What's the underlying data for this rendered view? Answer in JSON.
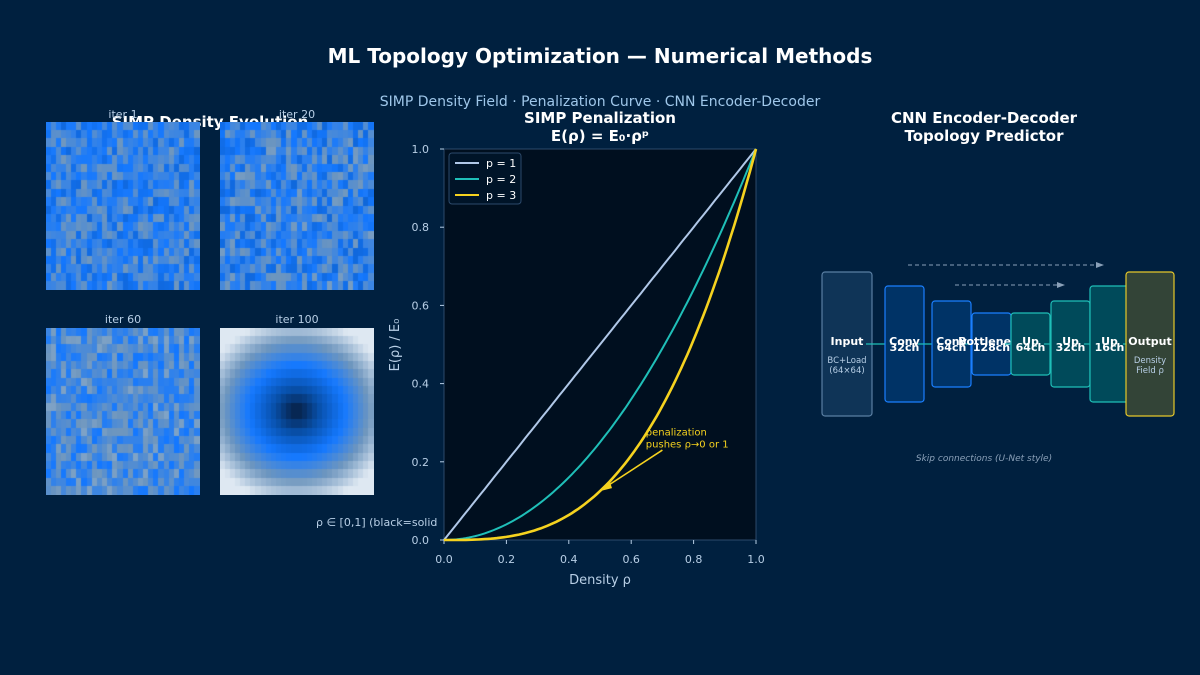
{
  "title": "ML Topology Optimization — Numerical Methods",
  "subtitle": "SIMP Density Field  ·  Penalization Curve  ·  CNN Encoder-Decoder",
  "density_panel": {
    "title": "SIMP Density Evolution",
    "iterations": [
      "iter 1",
      "iter 20",
      "iter 60",
      "iter 100"
    ],
    "caption": "ρ ∈ [0,1]  (black=solid"
  },
  "chart_data": {
    "type": "line",
    "title": "SIMP Penalization",
    "subtitle": "E(ρ) = E₀·ρᵖ",
    "xlabel": "Density  ρ",
    "ylabel": "E(ρ) / E₀",
    "xlim": [
      0,
      1
    ],
    "ylim": [
      0,
      1
    ],
    "xticks": [
      "0.0",
      "0.2",
      "0.4",
      "0.6",
      "0.8",
      "1.0"
    ],
    "yticks": [
      "0.0",
      "0.2",
      "0.4",
      "0.6",
      "0.8",
      "1.0"
    ],
    "series": [
      {
        "name": "p = 1",
        "exponent": 1,
        "color": "#b0c8e8"
      },
      {
        "name": "p = 2",
        "exponent": 2,
        "color": "#1fbfb8"
      },
      {
        "name": "p = 3",
        "exponent": 3,
        "color": "#f5d21f"
      }
    ],
    "annotation": {
      "line1": "penalization",
      "line2": "pushes ρ→0 or 1",
      "arrow_to": [
        0.5,
        0.125
      ],
      "text_at": [
        0.65,
        0.28
      ]
    },
    "legend": "top-left"
  },
  "cnn_panel": {
    "title_line1": "CNN Encoder-Decoder",
    "title_line2": "Topology Predictor",
    "blocks": [
      {
        "label": "Input",
        "sub1": "BC+Load",
        "sub2": "(64×64)",
        "fill": "#0f3457",
        "stroke": "#5a7fa3"
      },
      {
        "label": "Conv",
        "sub1": "32ch",
        "fill": "#003366",
        "stroke": "#1a7fff"
      },
      {
        "label": "Conv",
        "sub1": "64ch",
        "fill": "#003366",
        "stroke": "#1a7fff"
      },
      {
        "label": "Bottleneck",
        "sub1": "128ch",
        "fill": "#003366",
        "stroke": "#1a7fff"
      },
      {
        "label": "Up",
        "sub1": "64ch",
        "fill": "#004a5a",
        "stroke": "#1fbfb8"
      },
      {
        "label": "Up",
        "sub1": "32ch",
        "fill": "#004a5a",
        "stroke": "#1fbfb8"
      },
      {
        "label": "Up",
        "sub1": "16ch",
        "fill": "#004a5a",
        "stroke": "#1fbfb8"
      },
      {
        "label": "Output",
        "sub1": "Density",
        "sub2": "Field ρ",
        "fill": "#334437",
        "stroke": "#e6c82a"
      }
    ],
    "skip_note": "Skip connections (U-Net style)"
  }
}
